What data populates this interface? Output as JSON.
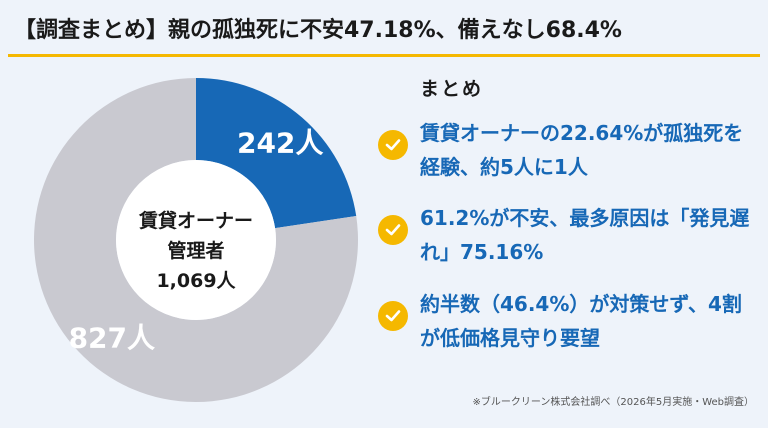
{
  "title": "【調査まとめ】親の孤独死に不安47.18%、備えなし68.4%",
  "summary": {
    "heading": "まとめ",
    "points": [
      "賃貸オーナーの22.64%が孤独死を経験、約5人に1人",
      "61.2%が不安、最多原因は「発見遅れ」75.16%",
      "約半数（46.4%）が対策せず、4割が低価格見守り要望"
    ]
  },
  "footnote": "※ブルークリーン株式会社調べ（2026年5月実施・Web調査）",
  "colors": {
    "accent": "#f5b800",
    "blue": "#1768b6",
    "gray": "#c9c9d0",
    "text_blue": "#1768b6"
  },
  "chart_data": {
    "type": "pie",
    "center_label": [
      "賃貸オーナー",
      "管理者",
      "1,069人"
    ],
    "slices": [
      {
        "label": "242人",
        "value": 242,
        "color": "#1768b6"
      },
      {
        "label": "827人",
        "value": 827,
        "color": "#c9c9d0"
      }
    ]
  }
}
